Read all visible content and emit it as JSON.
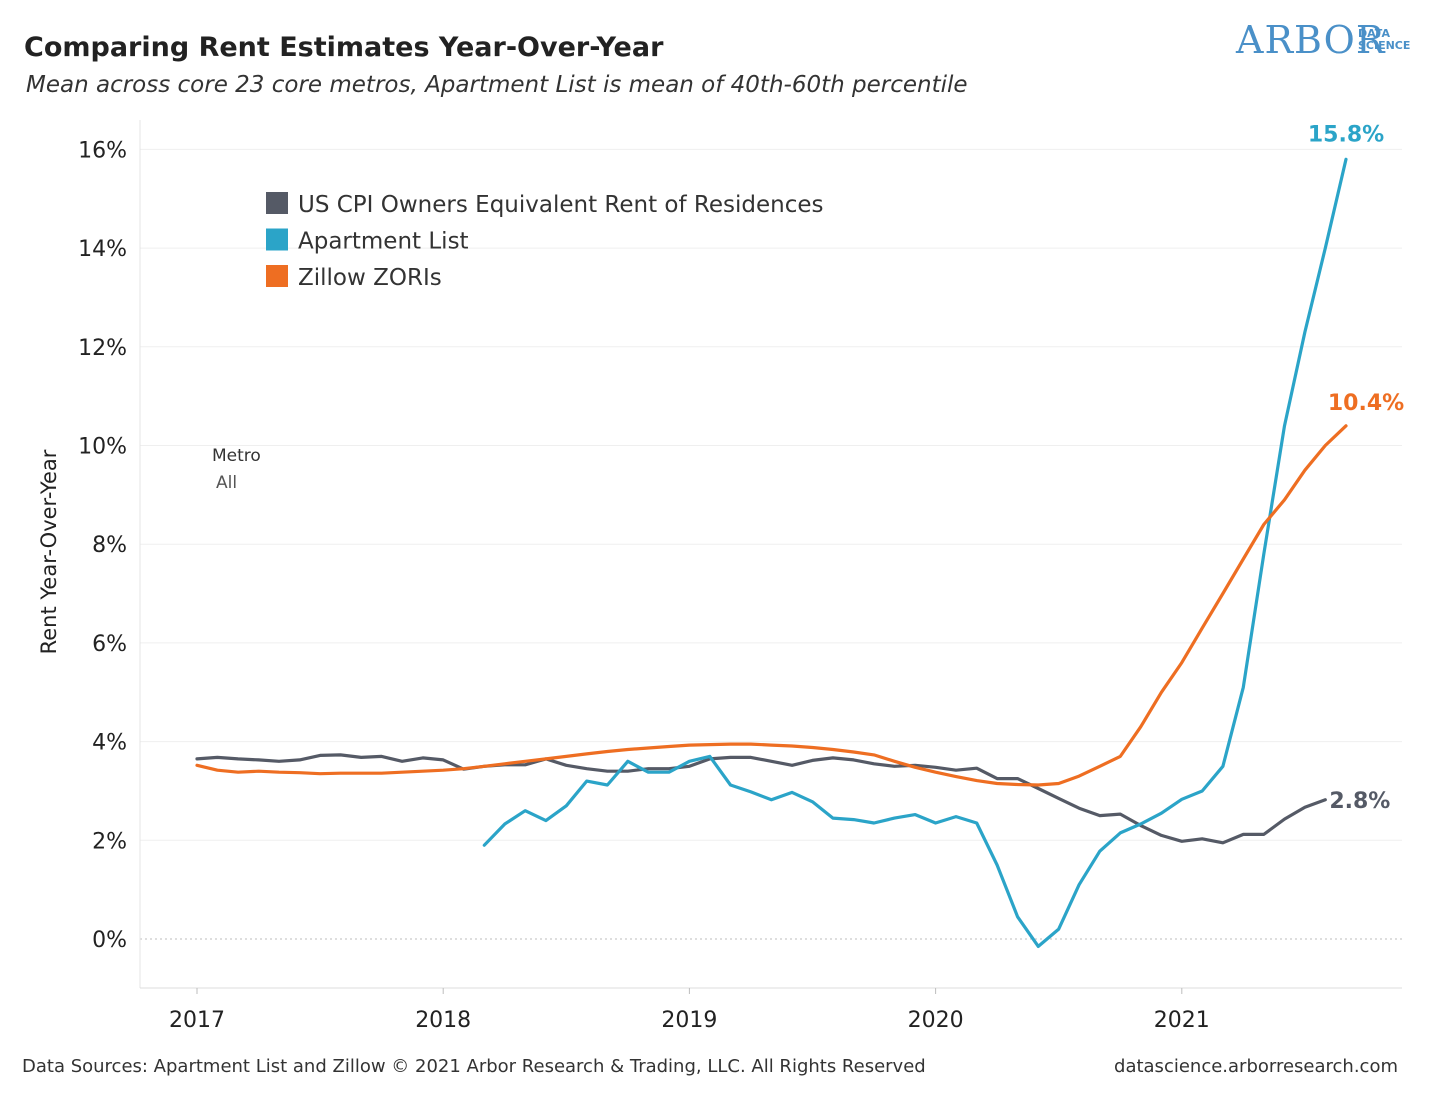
{
  "header": {
    "title": "Comparing Rent Estimates Year-Over-Year",
    "subtitle": "Mean across core 23 core metros, Apartment List is mean of 40th-60th percentile"
  },
  "logo": {
    "main": "ARBOR",
    "sub_line1": "DATA",
    "sub_line2": "SCIENCE",
    "color": "#4a90c8"
  },
  "filter": {
    "title": "Metro",
    "value": "All"
  },
  "footer": {
    "sources": "Data Sources: Apartment List and Zillow © 2021 Arbor Research & Trading, LLC. All Rights Reserved",
    "site": "datascience.arborresearch.com"
  },
  "chart_data": {
    "type": "line",
    "title": "Comparing Rent Estimates Year-Over-Year",
    "ylabel": "Rent Year-Over-Year",
    "xlabel": "",
    "x_ticks": [
      "2017",
      "2018",
      "2019",
      "2020",
      "2021"
    ],
    "y_ticks": [
      "0%",
      "2%",
      "4%",
      "6%",
      "8%",
      "10%",
      "12%",
      "14%",
      "16%"
    ],
    "ylim": [
      -1,
      17
    ],
    "xlim": [
      2016.77,
      2021.9
    ],
    "grid": true,
    "legend_position": "top-left",
    "series": [
      {
        "name": "US CPI Owners Equivalent Rent of Residences",
        "color": "#555a66",
        "end_label": "2.8%",
        "x": [
          2017.0,
          2017.083,
          2017.167,
          2017.25,
          2017.333,
          2017.417,
          2017.5,
          2017.583,
          2017.667,
          2017.75,
          2017.833,
          2017.917,
          2018.0,
          2018.083,
          2018.167,
          2018.25,
          2018.333,
          2018.417,
          2018.5,
          2018.583,
          2018.667,
          2018.75,
          2018.833,
          2018.917,
          2019.0,
          2019.083,
          2019.167,
          2019.25,
          2019.333,
          2019.417,
          2019.5,
          2019.583,
          2019.667,
          2019.75,
          2019.833,
          2019.917,
          2020.0,
          2020.083,
          2020.167,
          2020.25,
          2020.333,
          2020.417,
          2020.5,
          2020.583,
          2020.667,
          2020.75,
          2020.833,
          2020.917,
          2021.0,
          2021.083,
          2021.167,
          2021.25,
          2021.333,
          2021.417,
          2021.5,
          2021.583
        ],
        "y": [
          3.65,
          3.68,
          3.65,
          3.63,
          3.6,
          3.63,
          3.72,
          3.73,
          3.68,
          3.7,
          3.6,
          3.67,
          3.63,
          3.44,
          3.5,
          3.53,
          3.53,
          3.65,
          3.52,
          3.45,
          3.4,
          3.4,
          3.45,
          3.45,
          3.5,
          3.65,
          3.68,
          3.68,
          3.6,
          3.52,
          3.62,
          3.67,
          3.63,
          3.55,
          3.5,
          3.52,
          3.48,
          3.42,
          3.46,
          3.25,
          3.25,
          3.05,
          2.85,
          2.65,
          2.5,
          2.53,
          2.3,
          2.1,
          1.98,
          2.03,
          1.95,
          2.12,
          2.12,
          2.43,
          2.67,
          2.82
        ]
      },
      {
        "name": "Apartment List",
        "color": "#2ba4c8",
        "end_label": "15.8%",
        "x": [
          2018.167,
          2018.25,
          2018.333,
          2018.417,
          2018.5,
          2018.583,
          2018.667,
          2018.75,
          2018.833,
          2018.917,
          2019.0,
          2019.083,
          2019.167,
          2019.25,
          2019.333,
          2019.417,
          2019.5,
          2019.583,
          2019.667,
          2019.75,
          2019.833,
          2019.917,
          2020.0,
          2020.083,
          2020.167,
          2020.25,
          2020.333,
          2020.417,
          2020.5,
          2020.583,
          2020.667,
          2020.75,
          2020.833,
          2020.917,
          2021.0,
          2021.083,
          2021.167,
          2021.25,
          2021.333,
          2021.417,
          2021.5,
          2021.583,
          2021.667
        ],
        "y": [
          1.9,
          2.33,
          2.6,
          2.4,
          2.7,
          3.2,
          3.12,
          3.6,
          3.38,
          3.38,
          3.6,
          3.7,
          3.12,
          2.98,
          2.82,
          2.97,
          2.78,
          2.45,
          2.42,
          2.35,
          2.45,
          2.52,
          2.35,
          2.48,
          2.35,
          1.5,
          0.45,
          -0.15,
          0.2,
          1.1,
          1.78,
          2.15,
          2.33,
          2.55,
          2.83,
          3.0,
          3.5,
          5.1,
          7.8,
          10.4,
          12.3,
          14.0,
          15.8
        ]
      },
      {
        "name": "Zillow ZORIs",
        "color": "#ee6e22",
        "end_label": "10.4%",
        "x": [
          2017.0,
          2017.083,
          2017.167,
          2017.25,
          2017.333,
          2017.417,
          2017.5,
          2017.583,
          2017.667,
          2017.75,
          2017.833,
          2017.917,
          2018.0,
          2018.083,
          2018.167,
          2018.25,
          2018.333,
          2018.417,
          2018.5,
          2018.583,
          2018.667,
          2018.75,
          2018.833,
          2018.917,
          2019.0,
          2019.083,
          2019.167,
          2019.25,
          2019.333,
          2019.417,
          2019.5,
          2019.583,
          2019.667,
          2019.75,
          2019.833,
          2019.917,
          2020.0,
          2020.083,
          2020.167,
          2020.25,
          2020.333,
          2020.417,
          2020.5,
          2020.583,
          2020.667,
          2020.75,
          2020.833,
          2020.917,
          2021.0,
          2021.083,
          2021.167,
          2021.25,
          2021.333,
          2021.417,
          2021.5,
          2021.583,
          2021.667
        ],
        "y": [
          3.52,
          3.42,
          3.38,
          3.4,
          3.38,
          3.37,
          3.35,
          3.36,
          3.36,
          3.36,
          3.38,
          3.4,
          3.42,
          3.45,
          3.5,
          3.55,
          3.6,
          3.65,
          3.7,
          3.75,
          3.8,
          3.84,
          3.87,
          3.9,
          3.93,
          3.94,
          3.95,
          3.95,
          3.93,
          3.91,
          3.88,
          3.84,
          3.79,
          3.73,
          3.6,
          3.48,
          3.38,
          3.29,
          3.21,
          3.15,
          3.13,
          3.12,
          3.15,
          3.3,
          3.5,
          3.7,
          4.3,
          5.0,
          5.6,
          6.3,
          7.0,
          7.7,
          8.4,
          8.9,
          9.5,
          10.0,
          10.4
        ]
      }
    ]
  }
}
